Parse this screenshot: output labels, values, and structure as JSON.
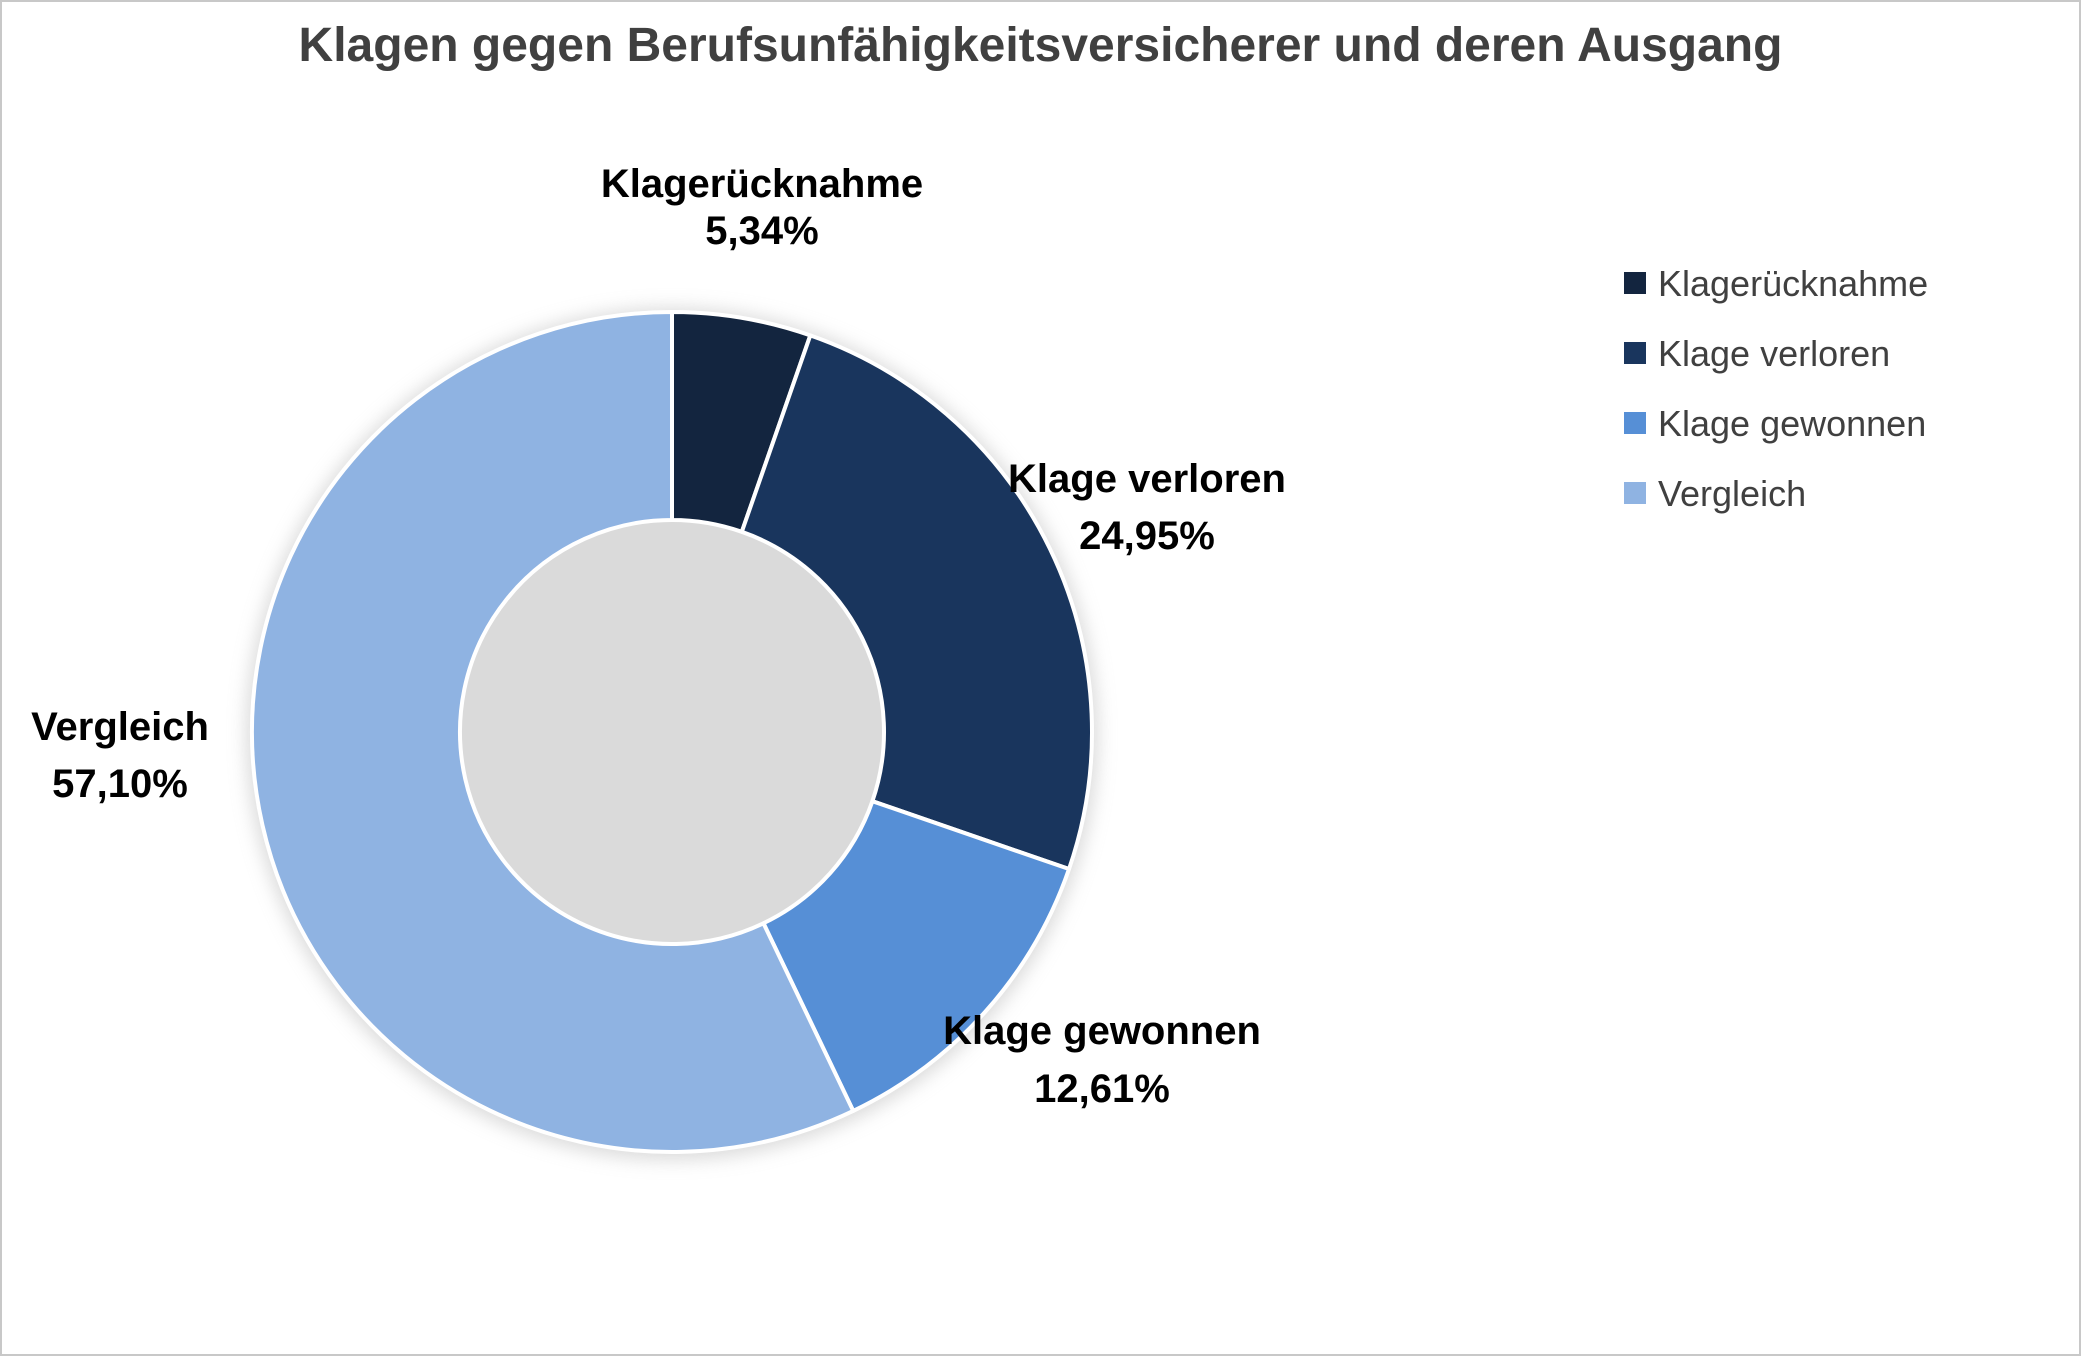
{
  "chart_data": {
    "type": "pie",
    "variant": "donut",
    "title": "Klagen gegen Berufsunfähigkeitsversicherer und deren Ausgang",
    "categories": [
      "Klagerücknahme",
      "Klage verloren",
      "Klage gewonnen",
      "Vergleich"
    ],
    "values": [
      5.34,
      24.95,
      12.61,
      57.1
    ],
    "value_labels": [
      "5,34%",
      "24,95%",
      "12,61%",
      "57,10%"
    ],
    "colors": [
      "#13253f",
      "#19355d",
      "#568fd6",
      "#8fb3e2"
    ],
    "legend_position": "right",
    "unit": "%"
  }
}
